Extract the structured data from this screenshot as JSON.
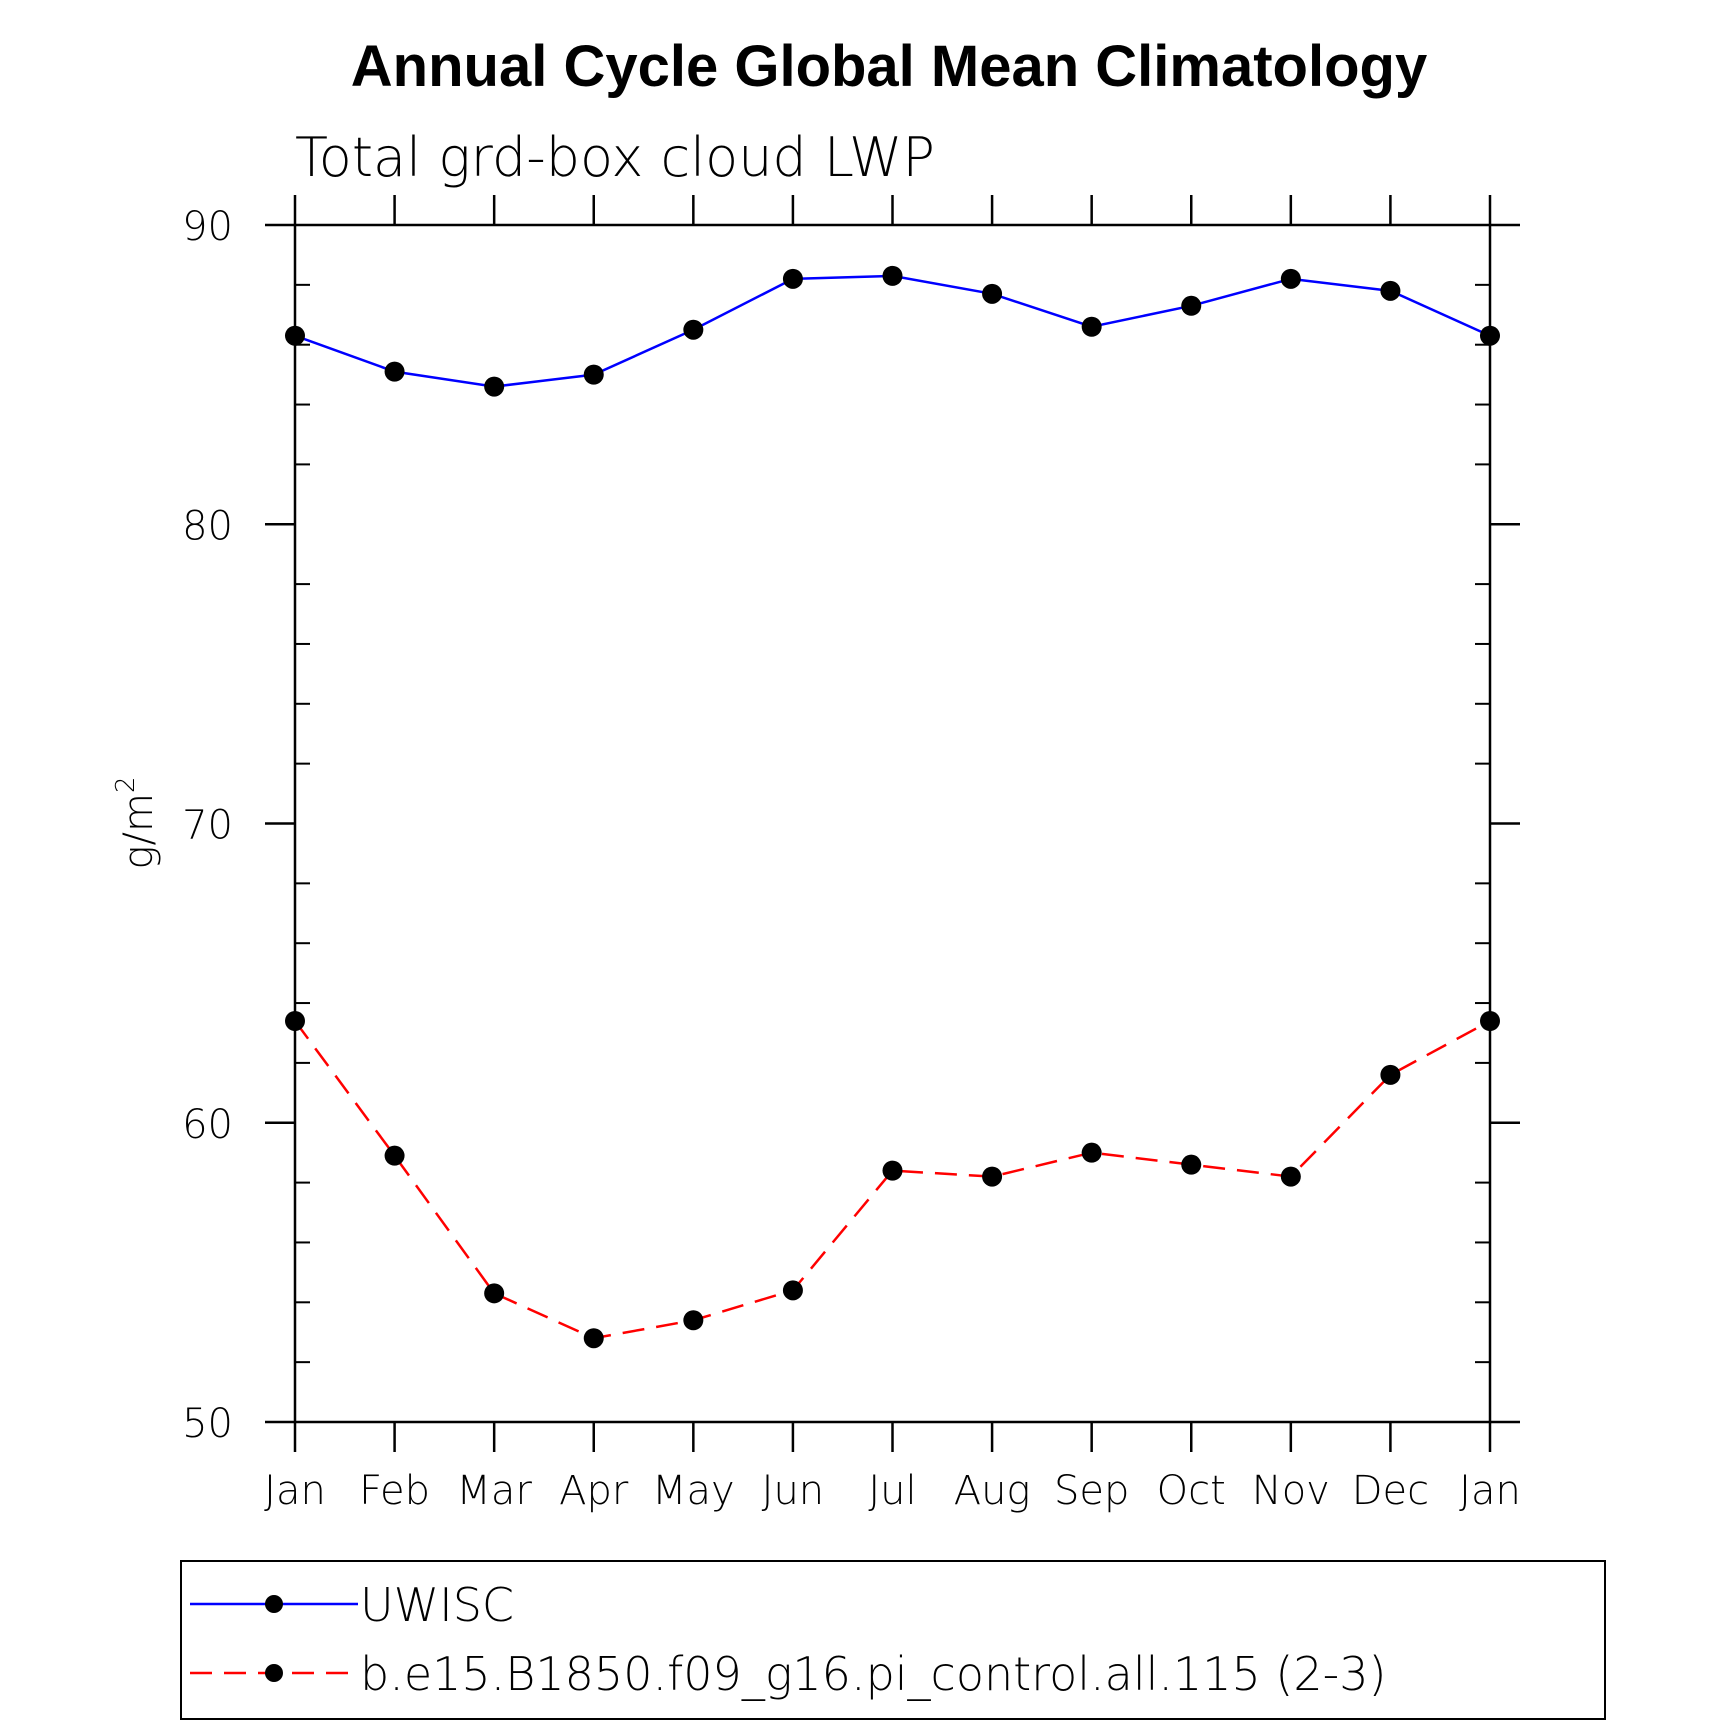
{
  "chart_data": {
    "type": "line",
    "title": "Annual Cycle Global Mean Climatology",
    "subtitle": "Total grd-box cloud LWP",
    "ylabel": "g/m",
    "ylabel_superscript": "2",
    "xlabel": "",
    "categories": [
      "Jan",
      "Feb",
      "Mar",
      "Apr",
      "May",
      "Jun",
      "Jul",
      "Aug",
      "Sep",
      "Oct",
      "Nov",
      "Dec",
      "Jan"
    ],
    "ylim": [
      50,
      90
    ],
    "yticks": [
      50,
      60,
      70,
      80,
      90
    ],
    "yticks_minor_step": 2,
    "grid": false,
    "legend_position": "bottom",
    "series": [
      {
        "name": "UWISC",
        "color": "#0000ff",
        "dash": "solid",
        "marker": "filled-circle",
        "values": [
          86.3,
          85.1,
          84.6,
          85.0,
          86.5,
          88.2,
          88.3,
          87.7,
          86.6,
          87.3,
          88.2,
          87.8,
          86.3
        ]
      },
      {
        "name": "b.e15.B1850.f09_g16.pi_control.all.115 (2-3)",
        "color": "#ff0000",
        "dash": "dashed",
        "marker": "filled-circle",
        "values": [
          63.4,
          58.9,
          54.3,
          52.8,
          53.4,
          54.4,
          58.4,
          58.2,
          59.0,
          58.6,
          58.2,
          61.6,
          63.4
        ]
      }
    ]
  }
}
